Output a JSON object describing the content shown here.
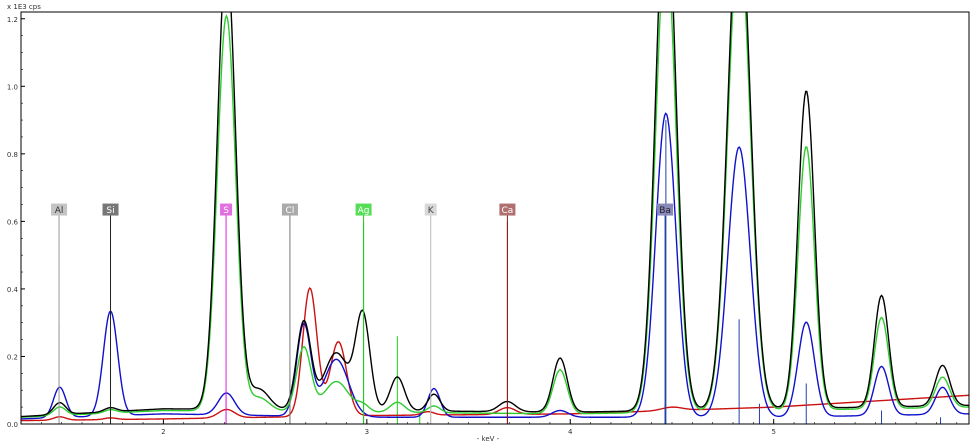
{
  "chart_data": {
    "type": "line",
    "ylabel": "x 1E3 cps",
    "xlabel": "- keV -",
    "xlim": [
      1.3,
      5.96
    ],
    "ylim": [
      0,
      1.22
    ],
    "x_ticks": [
      {
        "value": 2,
        "label": "2"
      },
      {
        "value": 3,
        "label": "3"
      },
      {
        "value": 4,
        "label": "4"
      },
      {
        "value": 5,
        "label": "5"
      }
    ],
    "y_ticks": [
      {
        "value": 0,
        "label": "0.0"
      },
      {
        "value": 0.2,
        "label": "0.2"
      },
      {
        "value": 0.4,
        "label": "0.4"
      },
      {
        "value": 0.6,
        "label": "0.6"
      },
      {
        "value": 0.8,
        "label": "0.8"
      },
      {
        "value": 1.0,
        "label": "1.0"
      },
      {
        "value": 1.2,
        "label": "1.2"
      }
    ],
    "element_markers": [
      {
        "label": "Al",
        "energy": 1.487,
        "color": "#9a9a9a",
        "box_color": "#c4c4c4",
        "text_color": "#333333"
      },
      {
        "label": "Si",
        "energy": 1.74,
        "color": "#222222",
        "box_color": "#777777",
        "text_color": "#ffffff"
      },
      {
        "label": "S",
        "energy": 2.308,
        "color": "#dd22dd",
        "box_color": "#e070e0",
        "text_color": "#ffffff"
      },
      {
        "label": "Cl",
        "energy": 2.622,
        "color": "#777777",
        "box_color": "#aaaaaa",
        "text_color": "#ffffff"
      },
      {
        "label": "Ag",
        "energy": 2.984,
        "color": "#22cc22",
        "box_color": "#55dd55",
        "text_color": "#ffffff"
      },
      {
        "label": "K",
        "energy": 3.314,
        "color": "#bbbbbb",
        "box_color": "#d8d8d8",
        "text_color": "#444444"
      },
      {
        "label": "Ca",
        "energy": 3.691,
        "color": "#8b1a1a",
        "box_color": "#b07070",
        "text_color": "#ffffff"
      },
      {
        "label": "Ba",
        "energy": 4.466,
        "color": "#2244aa",
        "box_color": "#8888bb",
        "text_color": "#222222"
      }
    ],
    "series": [
      {
        "color": "#000000",
        "baseline": [
          [
            1.3,
            0.022
          ],
          [
            2.0,
            0.045
          ],
          [
            3.0,
            0.04
          ],
          [
            4.0,
            0.035
          ],
          [
            5.0,
            0.045
          ],
          [
            5.96,
            0.055
          ]
        ],
        "peaks": [
          [
            1.49,
            0.035,
            0.03
          ],
          [
            1.74,
            0.012,
            0.03
          ],
          [
            2.31,
            1.34,
            0.045
          ],
          [
            2.47,
            0.06,
            0.05
          ],
          [
            2.69,
            0.26,
            0.035
          ],
          [
            2.85,
            0.17,
            0.06
          ],
          [
            2.98,
            0.28,
            0.035
          ],
          [
            3.15,
            0.1,
            0.035
          ],
          [
            3.33,
            0.05,
            0.03
          ],
          [
            3.69,
            0.03,
            0.04
          ],
          [
            3.95,
            0.16,
            0.035
          ],
          [
            4.47,
            1.55,
            0.05
          ],
          [
            4.83,
            1.5,
            0.055
          ],
          [
            5.16,
            0.94,
            0.04
          ],
          [
            5.53,
            0.33,
            0.035
          ],
          [
            5.83,
            0.12,
            0.035
          ]
        ]
      },
      {
        "color": "#2ecc2e",
        "baseline": [
          [
            1.3,
            0.02
          ],
          [
            2.0,
            0.04
          ],
          [
            3.0,
            0.035
          ],
          [
            4.0,
            0.03
          ],
          [
            5.0,
            0.04
          ],
          [
            5.96,
            0.05
          ]
        ],
        "peaks": [
          [
            1.49,
            0.025,
            0.03
          ],
          [
            1.74,
            0.01,
            0.03
          ],
          [
            2.31,
            1.17,
            0.045
          ],
          [
            2.47,
            0.04,
            0.05
          ],
          [
            2.69,
            0.19,
            0.035
          ],
          [
            2.85,
            0.09,
            0.06
          ],
          [
            2.98,
            0.02,
            0.03
          ],
          [
            3.15,
            0.03,
            0.035
          ],
          [
            3.33,
            0.02,
            0.03
          ],
          [
            3.95,
            0.13,
            0.035
          ],
          [
            4.47,
            1.38,
            0.05
          ],
          [
            4.83,
            1.4,
            0.055
          ],
          [
            5.16,
            0.78,
            0.04
          ],
          [
            5.53,
            0.27,
            0.035
          ],
          [
            5.83,
            0.09,
            0.035
          ]
        ]
      },
      {
        "color": "#1111cc",
        "baseline": [
          [
            1.3,
            0.015
          ],
          [
            2.0,
            0.03
          ],
          [
            3.0,
            0.02
          ],
          [
            4.0,
            0.02
          ],
          [
            5.0,
            0.02
          ],
          [
            5.96,
            0.03
          ]
        ],
        "peaks": [
          [
            1.49,
            0.09,
            0.03
          ],
          [
            1.74,
            0.31,
            0.035
          ],
          [
            2.31,
            0.065,
            0.04
          ],
          [
            2.69,
            0.27,
            0.035
          ],
          [
            2.85,
            0.17,
            0.06
          ],
          [
            3.33,
            0.085,
            0.03
          ],
          [
            3.95,
            0.02,
            0.04
          ],
          [
            4.47,
            0.9,
            0.05
          ],
          [
            4.83,
            0.8,
            0.055
          ],
          [
            5.16,
            0.28,
            0.04
          ],
          [
            5.53,
            0.145,
            0.035
          ],
          [
            5.83,
            0.08,
            0.035
          ]
        ]
      },
      {
        "color": "#cc1111",
        "baseline": [
          [
            1.3,
            0.01
          ],
          [
            2.0,
            0.015
          ],
          [
            3.0,
            0.025
          ],
          [
            4.0,
            0.03
          ],
          [
            4.5,
            0.04
          ],
          [
            5.0,
            0.05
          ],
          [
            5.96,
            0.085
          ]
        ],
        "peaks": [
          [
            1.49,
            0.01,
            0.03
          ],
          [
            1.74,
            0.005,
            0.03
          ],
          [
            2.31,
            0.025,
            0.04
          ],
          [
            2.72,
            0.38,
            0.035
          ],
          [
            2.86,
            0.22,
            0.04
          ],
          [
            3.3,
            0.01,
            0.03
          ],
          [
            3.69,
            0.02,
            0.04
          ],
          [
            4.5,
            0.01,
            0.05
          ]
        ]
      }
    ],
    "vertical_lines": [
      {
        "x": 1.487,
        "y": 0.3,
        "color": "#9a9a9a"
      },
      {
        "x": 1.74,
        "y": 0.3,
        "color": "#222222"
      },
      {
        "x": 2.308,
        "y": 0.1,
        "color": "#dd22dd"
      },
      {
        "x": 2.622,
        "y": 0.05,
        "color": "#777777"
      },
      {
        "x": 2.984,
        "y": 0.6,
        "color": "#22cc22"
      },
      {
        "x": 3.15,
        "y": 0.26,
        "color": "#22cc22"
      },
      {
        "x": 3.26,
        "y": 0.03,
        "color": "#22cc22"
      },
      {
        "x": 3.314,
        "y": 0.1,
        "color": "#bbbbbb"
      },
      {
        "x": 3.691,
        "y": 0.6,
        "color": "#8b1a1a"
      },
      {
        "x": 4.466,
        "y": 0.06,
        "color": "#2244aa"
      },
      {
        "x": 4.47,
        "y": 0.9,
        "color": "#2244aa"
      },
      {
        "x": 4.83,
        "y": 0.31,
        "color": "#2244aa"
      },
      {
        "x": 4.93,
        "y": 0.06,
        "color": "#2244aa"
      },
      {
        "x": 5.16,
        "y": 0.12,
        "color": "#2244aa"
      },
      {
        "x": 5.53,
        "y": 0.04,
        "color": "#2244aa"
      },
      {
        "x": 5.82,
        "y": 0.02,
        "color": "#2244aa"
      }
    ]
  }
}
